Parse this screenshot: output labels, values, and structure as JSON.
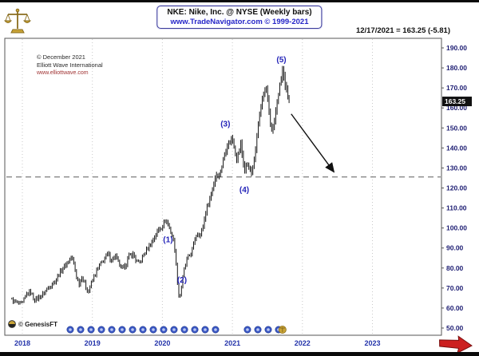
{
  "header": {
    "title": "NKE:  Nike, Inc. @ NYSE  (Weekly bars)",
    "subtitle": "www.TradeNavigator.com © 1999-2021",
    "quote": "12/17/2021 = 163.25 (-5.81)"
  },
  "watermark": {
    "line1": "© December 2021",
    "line2": "Elliott Wave International",
    "line3": "www.elliottwave.com"
  },
  "footer": {
    "brand": "© GenesisFT"
  },
  "colors": {
    "bars": "#151515",
    "wave_label": "#2323b8",
    "axis_label": "#1c1c72",
    "year_label": "#2333aa",
    "target_line": "#5a5a5a",
    "grid": "#c9c9c9",
    "frame": "#555555",
    "price_tag_bg": "#111111",
    "price_tag_text": "#ffffff",
    "event_marker": "#3a57c4",
    "event_marker_core": "#bcc9f2",
    "gold": "#c9a437",
    "gold_dark": "#8a6d1e",
    "red_arrow": "#cc2020"
  },
  "chart_data": {
    "type": "bar",
    "subtype": "weekly-ohlc-price-bars",
    "symbol": "NKE",
    "title": "NKE: Nike, Inc. @ NYSE (Weekly bars)",
    "source": "www.TradeNavigator.com © 1999-2021",
    "x_ticks": [
      2018,
      2019,
      2020,
      2021,
      2022,
      2023
    ],
    "y_ticks": [
      190,
      180,
      170,
      160,
      150,
      140,
      130,
      120,
      110,
      100,
      90,
      80,
      70,
      60,
      50
    ],
    "xlim": [
      2017.78,
      2023.98
    ],
    "ylim": [
      47,
      194
    ],
    "grid": "vertical-dotted-year-lines",
    "legend": "none",
    "anchors": {
      "x": [
        2017.85,
        2017.95,
        2018.0,
        2018.06,
        2018.12,
        2018.17,
        2018.22,
        2018.3,
        2018.36,
        2018.42,
        2018.48,
        2018.52,
        2018.58,
        2018.65,
        2018.7,
        2018.73,
        2018.77,
        2018.81,
        2018.85,
        2018.89,
        2018.94,
        2018.98,
        2019.04,
        2019.1,
        2019.16,
        2019.22,
        2019.27,
        2019.33,
        2019.38,
        2019.42,
        2019.48,
        2019.52,
        2019.58,
        2019.62,
        2019.67,
        2019.71,
        2019.77,
        2019.83,
        2019.88,
        2019.94,
        2020.0,
        2020.04,
        2020.08,
        2020.12,
        2020.15,
        2020.18,
        2020.21,
        2020.24,
        2020.27,
        2020.31,
        2020.35,
        2020.38,
        2020.42,
        2020.46,
        2020.5,
        2020.54,
        2020.58,
        2020.62,
        2020.65,
        2020.69,
        2020.73,
        2020.77,
        2020.81,
        2020.85,
        2020.88,
        2020.92,
        2020.96,
        2021.0,
        2021.03,
        2021.06,
        2021.09,
        2021.12,
        2021.15,
        2021.18,
        2021.21,
        2021.24,
        2021.27,
        2021.3,
        2021.33,
        2021.36,
        2021.39,
        2021.42,
        2021.45,
        2021.48,
        2021.51,
        2021.54,
        2021.57,
        2021.6,
        2021.63,
        2021.66,
        2021.69,
        2021.72,
        2021.75,
        2021.78,
        2021.81
      ],
      "close": [
        64,
        62,
        62,
        67,
        68,
        64,
        65,
        67,
        70,
        72,
        74,
        77,
        80,
        83,
        85.5,
        83,
        76,
        72,
        76,
        72,
        68,
        72,
        77,
        81,
        84,
        87,
        84,
        86,
        82,
        79,
        82,
        86,
        87,
        84,
        82,
        85,
        89,
        92,
        95,
        99,
        101,
        104,
        102,
        98,
        95,
        89,
        75,
        64,
        70,
        79,
        84,
        86,
        88,
        94,
        98,
        96,
        101,
        108,
        112,
        116,
        122,
        127,
        126,
        131,
        136,
        141,
        143,
        145,
        140,
        134,
        138,
        142,
        134,
        128,
        133,
        130,
        127,
        131,
        140,
        150,
        157,
        163,
        168,
        170,
        163,
        152,
        147,
        153,
        161,
        168,
        174,
        179,
        172,
        168,
        163.25
      ]
    },
    "last": {
      "date": "12/17/2021",
      "price": 163.25,
      "change": -5.81
    },
    "target_line_y": 125.5,
    "projection_arrow": {
      "x1": 2021.84,
      "y1": 157,
      "x2": 2022.45,
      "y2": 128
    },
    "wave_labels": [
      {
        "label": "(1)",
        "x": 2020.08,
        "price": 94
      },
      {
        "label": "(2)",
        "x": 2020.28,
        "price": 74
      },
      {
        "label": "(3)",
        "x": 2020.9,
        "price": 152
      },
      {
        "label": "(4)",
        "x": 2021.17,
        "price": 119
      },
      {
        "label": "(5)",
        "x": 2021.7,
        "price": 184
      }
    ],
    "event_marker_years": [
      2018.684,
      2018.832,
      2018.981,
      2019.129,
      2019.277,
      2019.425,
      2019.574,
      2019.722,
      2019.87,
      2020.018,
      2020.166,
      2020.315,
      2020.463,
      2020.611,
      2020.759,
      2021.215,
      2021.364,
      2021.512,
      2021.66
    ],
    "mini_scales_year": 2021.715
  }
}
